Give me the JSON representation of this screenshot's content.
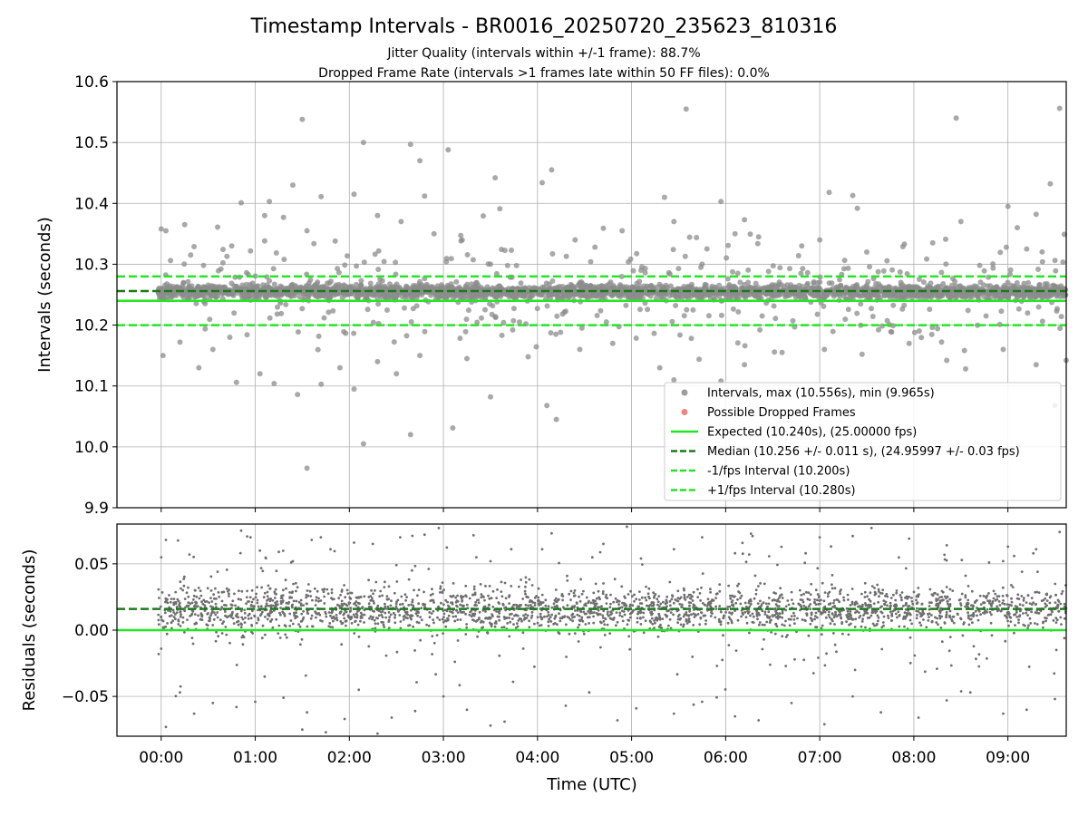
{
  "chart_data": [
    {
      "type": "scatter",
      "title": "Timestamp Intervals - BR0016_20250720_235623_810316",
      "subtitle_lines": [
        "Jitter Quality (intervals within +/-1 frame): 88.7%",
        "Dropped Frame Rate (intervals >1 frames late within 50 FF files): 0.0%"
      ],
      "ylabel": "Intervals (seconds)",
      "ylim": [
        9.9,
        10.6
      ],
      "yticks": [
        "9.9",
        "10.0",
        "10.1",
        "10.2",
        "10.3",
        "10.4",
        "10.5",
        "10.6"
      ],
      "xlim_hours": [
        -0.47,
        9.62
      ],
      "grid": true,
      "legend_placement": "lower-right",
      "legend": [
        {
          "kind": "marker",
          "color": "#8c8c8c",
          "label": "Intervals, max (10.556s), min (9.965s)"
        },
        {
          "kind": "marker",
          "color": "#f06b6b",
          "label": "Possible Dropped Frames"
        },
        {
          "kind": "solid",
          "color": "#22e622",
          "label": "Expected (10.240s), (25.00000 fps)"
        },
        {
          "kind": "dashed",
          "color": "#1a7a1a",
          "label": "Median (10.256 +/- 0.011 s), (24.95997 +/- 0.03 fps)"
        },
        {
          "kind": "dashed",
          "color": "#22e622",
          "label": "-1/fps Interval (10.200s)"
        },
        {
          "kind": "dashed",
          "color": "#22e622",
          "label": "+1/fps Interval (10.280s)"
        }
      ],
      "reference_lines": {
        "expected": 10.24,
        "median": 10.256,
        "minus_one_fps": 10.2,
        "plus_one_fps": 10.28
      },
      "series": [
        {
          "name": "Intervals, max (10.556s), min (9.965s)",
          "max": 10.556,
          "min": 9.965,
          "core_center": 10.255,
          "core_halfwidth": 0.008
        },
        {
          "name": "Possible Dropped Frames",
          "values": []
        }
      ],
      "outliers": [
        [
          0.0,
          10.358
        ],
        [
          0.05,
          10.355
        ],
        [
          0.1,
          10.306
        ],
        [
          0.25,
          10.365
        ],
        [
          0.35,
          10.329
        ],
        [
          0.45,
          10.298
        ],
        [
          0.6,
          10.361
        ],
        [
          0.75,
          10.33
        ],
        [
          0.85,
          10.401
        ],
        [
          0.95,
          10.322
        ],
        [
          1.1,
          10.38
        ],
        [
          1.15,
          10.403
        ],
        [
          1.3,
          10.377
        ],
        [
          1.4,
          10.43
        ],
        [
          1.5,
          10.538
        ],
        [
          1.55,
          10.355
        ],
        [
          1.7,
          10.411
        ],
        [
          1.85,
          10.338
        ],
        [
          2.05,
          10.415
        ],
        [
          2.15,
          10.5
        ],
        [
          2.3,
          10.38
        ],
        [
          2.55,
          10.37
        ],
        [
          2.65,
          10.497
        ],
        [
          2.75,
          10.47
        ],
        [
          2.8,
          10.412
        ],
        [
          2.9,
          10.35
        ],
        [
          3.05,
          10.488
        ],
        [
          3.2,
          10.34
        ],
        [
          3.5,
          10.3
        ],
        [
          3.55,
          10.442
        ],
        [
          3.6,
          10.391
        ],
        [
          4.05,
          10.434
        ],
        [
          4.15,
          10.455
        ],
        [
          4.4,
          10.34
        ],
        [
          4.7,
          10.359
        ],
        [
          4.9,
          10.355
        ],
        [
          5.1,
          10.29
        ],
        [
          5.35,
          10.41
        ],
        [
          5.45,
          10.37
        ],
        [
          5.58,
          10.555
        ],
        [
          5.75,
          10.3
        ],
        [
          5.95,
          10.403
        ],
        [
          6.1,
          10.35
        ],
        [
          6.2,
          10.373
        ],
        [
          6.35,
          10.345
        ],
        [
          6.8,
          10.285
        ],
        [
          7.0,
          10.34
        ],
        [
          7.1,
          10.418
        ],
        [
          7.35,
          10.413
        ],
        [
          7.4,
          10.392
        ],
        [
          7.5,
          10.32
        ],
        [
          7.9,
          10.333
        ],
        [
          8.2,
          10.335
        ],
        [
          8.45,
          10.54
        ],
        [
          8.5,
          10.37
        ],
        [
          8.7,
          10.298
        ],
        [
          9.0,
          10.395
        ],
        [
          9.1,
          10.36
        ],
        [
          9.2,
          10.325
        ],
        [
          9.3,
          10.382
        ],
        [
          9.45,
          10.432
        ],
        [
          9.55,
          10.556
        ],
        [
          9.6,
          10.349
        ],
        [
          0.02,
          10.15
        ],
        [
          0.2,
          10.172
        ],
        [
          0.4,
          10.13
        ],
        [
          0.55,
          10.16
        ],
        [
          0.8,
          10.106
        ],
        [
          1.05,
          10.12
        ],
        [
          1.2,
          10.104
        ],
        [
          1.45,
          10.086
        ],
        [
          1.55,
          9.965
        ],
        [
          1.7,
          10.103
        ],
        [
          1.9,
          10.13
        ],
        [
          2.05,
          10.095
        ],
        [
          2.15,
          10.005
        ],
        [
          2.3,
          10.14
        ],
        [
          2.5,
          10.12
        ],
        [
          2.65,
          10.02
        ],
        [
          2.75,
          10.15
        ],
        [
          3.1,
          10.031
        ],
        [
          3.25,
          10.145
        ],
        [
          3.5,
          10.082
        ],
        [
          3.9,
          10.148
        ],
        [
          4.1,
          10.068
        ],
        [
          4.2,
          10.045
        ],
        [
          4.45,
          10.16
        ],
        [
          4.8,
          10.17
        ],
        [
          5.3,
          10.13
        ],
        [
          5.45,
          10.11
        ],
        [
          5.95,
          10.108
        ],
        [
          6.2,
          10.135
        ],
        [
          6.6,
          10.155
        ],
        [
          7.05,
          10.16
        ],
        [
          7.45,
          10.152
        ],
        [
          7.95,
          10.17
        ],
        [
          8.35,
          10.142
        ],
        [
          8.55,
          10.128
        ],
        [
          8.95,
          10.16
        ],
        [
          9.3,
          10.135
        ],
        [
          9.5,
          10.068
        ],
        [
          9.62,
          10.142
        ]
      ]
    },
    {
      "type": "scatter",
      "xlabel": "Time (UTC)",
      "ylabel": "Residuals (seconds)",
      "ylim": [
        -0.08,
        0.08
      ],
      "yticks": [
        "−0.05",
        "0.00",
        "0.05"
      ],
      "xticks": [
        "00:00",
        "01:00",
        "02:00",
        "03:00",
        "04:00",
        "05:00",
        "06:00",
        "07:00",
        "08:00",
        "09:00"
      ],
      "xlim_hours": [
        -0.47,
        9.62
      ],
      "grid": true,
      "reference_lines": {
        "zero": 0.0,
        "median_residual": 0.016
      },
      "series": [
        {
          "name": "Residuals",
          "core_center": 0.016,
          "core_halfwidth": 0.012
        }
      ],
      "outliers": [
        [
          0.0,
          0.055
        ],
        [
          0.05,
          0.068
        ],
        [
          0.3,
          0.057
        ],
        [
          0.6,
          0.044
        ],
        [
          0.85,
          0.075
        ],
        [
          0.95,
          0.07
        ],
        [
          1.05,
          0.06
        ],
        [
          1.25,
          0.059
        ],
        [
          1.4,
          0.052
        ],
        [
          1.6,
          0.068
        ],
        [
          1.8,
          0.061
        ],
        [
          2.05,
          0.066
        ],
        [
          2.25,
          0.065
        ],
        [
          2.5,
          0.049
        ],
        [
          2.8,
          0.072
        ],
        [
          2.95,
          0.077
        ],
        [
          3.35,
          0.055
        ],
        [
          3.5,
          0.052
        ],
        [
          4.05,
          0.061
        ],
        [
          4.15,
          0.073
        ],
        [
          4.7,
          0.065
        ],
        [
          4.95,
          0.078
        ],
        [
          5.1,
          0.054
        ],
        [
          5.45,
          0.061
        ],
        [
          5.75,
          0.07
        ],
        [
          6.1,
          0.058
        ],
        [
          6.25,
          0.057
        ],
        [
          6.85,
          0.058
        ],
        [
          7.0,
          0.07
        ],
        [
          7.35,
          0.071
        ],
        [
          7.55,
          0.077
        ],
        [
          7.95,
          0.069
        ],
        [
          8.35,
          0.064
        ],
        [
          8.55,
          0.041
        ],
        [
          8.8,
          0.051
        ],
        [
          9.0,
          0.063
        ],
        [
          9.15,
          0.044
        ],
        [
          9.3,
          0.061
        ],
        [
          9.55,
          0.074
        ],
        [
          0.0,
          -0.014
        ],
        [
          0.05,
          -0.073
        ],
        [
          0.2,
          -0.047
        ],
        [
          0.35,
          -0.063
        ],
        [
          0.55,
          -0.055
        ],
        [
          0.8,
          -0.058
        ],
        [
          1.0,
          -0.054
        ],
        [
          1.1,
          -0.035
        ],
        [
          1.3,
          -0.051
        ],
        [
          1.5,
          -0.075
        ],
        [
          1.55,
          -0.062
        ],
        [
          1.75,
          -0.077
        ],
        [
          1.95,
          -0.067
        ],
        [
          2.1,
          -0.045
        ],
        [
          2.3,
          -0.078
        ],
        [
          2.45,
          -0.066
        ],
        [
          2.7,
          -0.061
        ],
        [
          3.0,
          -0.05
        ],
        [
          3.25,
          -0.06
        ],
        [
          3.5,
          -0.072
        ],
        [
          3.65,
          -0.069
        ],
        [
          4.3,
          -0.057
        ],
        [
          4.55,
          -0.047
        ],
        [
          4.85,
          -0.068
        ],
        [
          5.05,
          -0.059
        ],
        [
          5.45,
          -0.063
        ],
        [
          5.75,
          -0.054
        ],
        [
          6.1,
          -0.065
        ],
        [
          6.35,
          -0.068
        ],
        [
          6.7,
          -0.055
        ],
        [
          7.05,
          -0.071
        ],
        [
          7.35,
          -0.05
        ],
        [
          7.65,
          -0.062
        ],
        [
          8.05,
          -0.066
        ],
        [
          8.35,
          -0.053
        ],
        [
          8.6,
          -0.047
        ],
        [
          8.95,
          -0.063
        ],
        [
          9.2,
          -0.06
        ],
        [
          9.5,
          -0.052
        ],
        [
          9.6,
          -0.006
        ]
      ]
    }
  ]
}
